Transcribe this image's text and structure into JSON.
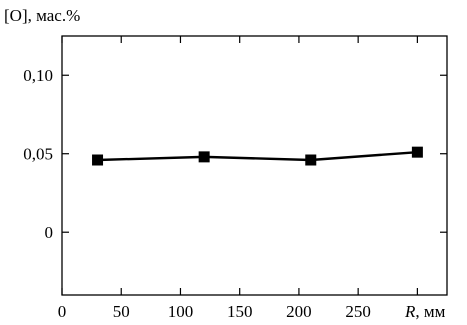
{
  "chart_data": {
    "type": "line",
    "title": "",
    "ylabel": "[O], мас.%",
    "xlabel_main": "R",
    "xlabel_unit": ", мм",
    "xlim": [
      0,
      325
    ],
    "ylim": [
      -0.04,
      0.125
    ],
    "x_ticks": [
      0,
      50,
      100,
      150,
      200,
      250,
      300
    ],
    "x_tick_labels": [
      "0",
      "50",
      "100",
      "150",
      "200",
      "250",
      ""
    ],
    "y_ticks": [
      0,
      0.05,
      0.1
    ],
    "y_tick_labels": [
      "0",
      "0,05",
      "0,10"
    ],
    "grid": false,
    "legend": "none",
    "series": [
      {
        "x": [
          30,
          120,
          210,
          300
        ],
        "y": [
          0.046,
          0.048,
          0.046,
          0.051
        ],
        "marker": "square",
        "color": "#000000"
      }
    ]
  }
}
